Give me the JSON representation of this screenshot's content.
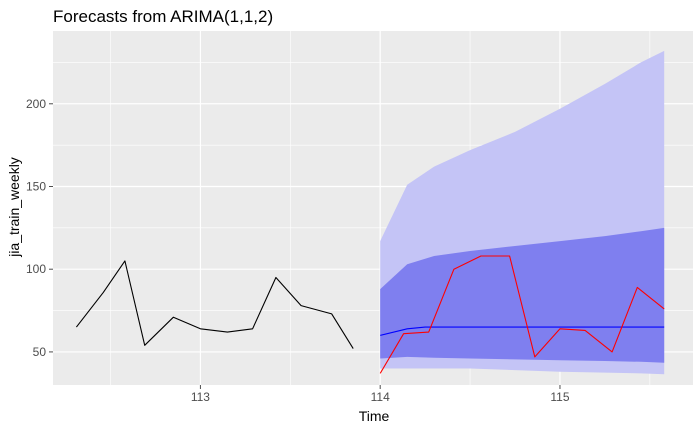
{
  "chart_data": {
    "type": "line",
    "title": "Forecasts from ARIMA(1,1,2)",
    "xlabel": "Time",
    "ylabel": "jia_train_weekly",
    "xlim": [
      112.18,
      115.74
    ],
    "ylim": [
      30,
      244
    ],
    "x_ticks": [
      113,
      114,
      115
    ],
    "y_ticks": [
      50,
      100,
      150,
      200
    ],
    "grid": true,
    "colors": {
      "panel": "#EBEBEB",
      "grid": "#FFFFFF",
      "history": "#000000",
      "forecast": "#0000FF",
      "actual": "#FF0000",
      "ci95": "#C4C4F6",
      "ci80": "#7F7FEF",
      "tick": "#4D4D4D"
    },
    "series": [
      {
        "role": "history",
        "x": [
          112.31,
          112.46,
          112.58,
          112.69,
          112.85,
          113.0,
          113.15,
          113.29,
          113.42,
          113.56,
          113.73,
          113.85
        ],
        "values": [
          65,
          86,
          105,
          54,
          71,
          64,
          62,
          64,
          95,
          78,
          73,
          52
        ]
      },
      {
        "role": "point-forecast",
        "x": [
          114.0,
          114.15,
          114.25,
          114.5,
          114.75,
          115.0,
          115.25,
          115.58
        ],
        "values": [
          60,
          64,
          65,
          65,
          65,
          65,
          65,
          65
        ]
      },
      {
        "role": "actual",
        "x": [
          114.0,
          114.13,
          114.27,
          114.41,
          114.56,
          114.72,
          114.86,
          115.0,
          115.14,
          115.29,
          115.43,
          115.58
        ],
        "values": [
          37,
          61,
          62,
          100,
          108,
          108,
          47,
          64,
          63,
          50,
          89,
          76
        ]
      }
    ],
    "bands": [
      {
        "level": 95,
        "x": [
          114.0,
          114.15,
          114.3,
          114.5,
          114.75,
          115.0,
          115.25,
          115.45,
          115.58
        ],
        "lower": [
          40,
          40,
          40,
          40,
          39,
          38,
          37.5,
          37,
          36.5
        ],
        "upper": [
          117,
          151,
          162,
          172,
          183,
          197,
          212,
          225,
          232
        ]
      },
      {
        "level": 80,
        "x": [
          114.0,
          114.15,
          114.3,
          114.5,
          114.75,
          115.0,
          115.25,
          115.45,
          115.58
        ],
        "lower": [
          46,
          47,
          46.5,
          46,
          45.5,
          45,
          44.5,
          44,
          43.5
        ],
        "upper": [
          88,
          103,
          108,
          111,
          114,
          117,
          120,
          123,
          125
        ]
      }
    ]
  }
}
